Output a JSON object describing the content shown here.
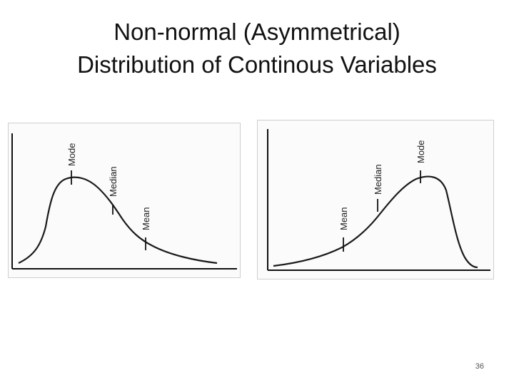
{
  "slide": {
    "title_line1": "Non-normal (Asymmetrical)",
    "title_line2": "Distribution of Continous Variables",
    "page_number": "36"
  },
  "diagrams": [
    {
      "skew": "positive",
      "markers": [
        {
          "label": "Mode"
        },
        {
          "label": "Median"
        },
        {
          "label": "Mean"
        }
      ]
    },
    {
      "skew": "negative",
      "markers": [
        {
          "label": "Mean"
        },
        {
          "label": "Median"
        },
        {
          "label": "Mode"
        }
      ]
    }
  ],
  "colors": {
    "curve": "#1a1a1a",
    "axis": "#111111",
    "text": "#222222"
  }
}
